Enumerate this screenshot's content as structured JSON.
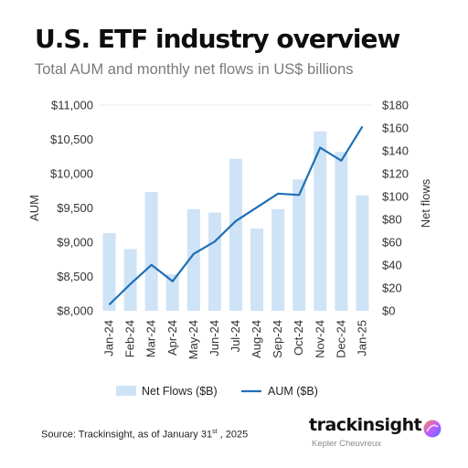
{
  "header": {
    "title": "U.S. ETF industry overview",
    "subtitle": "Total AUM and monthly net flows in US$ billions"
  },
  "footer": {
    "source_prefix": "Source: Trackinsight, as of January 31",
    "source_sup": "st",
    "source_suffix": " , 2025",
    "brand_name": "trackinsight",
    "brand_sub": "Kepler Cheuvreux"
  },
  "colors": {
    "bars": "#cfe3f7",
    "line": "#1f6fb5",
    "grid": "#e8e8e8",
    "logo_a": "#7b5cff",
    "logo_b": "#ff8a4c"
  },
  "chart_data": {
    "type": "bar+line",
    "categories": [
      "Jan-24",
      "Feb-24",
      "Mar-24",
      "Apr-24",
      "May-24",
      "Jun-24",
      "Jul-24",
      "Aug-24",
      "Sep-24",
      "Oct-24",
      "Nov-24",
      "Dec-24",
      "Jan-25"
    ],
    "series": [
      {
        "name": "Net Flows ($B)",
        "type": "bar",
        "axis": "right",
        "values": [
          68,
          54,
          104,
          32,
          89,
          86,
          133,
          72,
          89,
          115,
          157,
          139,
          101
        ]
      },
      {
        "name": "AUM ($B)",
        "type": "line",
        "axis": "left",
        "values": [
          8090,
          8390,
          8670,
          8430,
          8830,
          9010,
          9310,
          9510,
          9710,
          9690,
          10380,
          10190,
          10690
        ]
      }
    ],
    "y_left": {
      "label": "AUM",
      "ylim": [
        8000,
        11000
      ],
      "ticks": [
        8000,
        8500,
        9000,
        9500,
        10000,
        10500,
        11000
      ],
      "tick_labels": [
        "$8,000",
        "$8,500",
        "$9,000",
        "$9,500",
        "$10,000",
        "$10,500",
        "$11,000"
      ]
    },
    "y_right": {
      "label": "Net flows",
      "ylim": [
        0,
        180
      ],
      "ticks": [
        0,
        20,
        40,
        60,
        80,
        100,
        120,
        140,
        160,
        180
      ],
      "tick_labels": [
        "$0",
        "$20",
        "$40",
        "$60",
        "$80",
        "$100",
        "$120",
        "$140",
        "$160",
        "$180"
      ]
    },
    "legend": {
      "placement": "bottom",
      "items": [
        "Net Flows ($B)",
        "AUM ($B)"
      ]
    },
    "grid": false
  }
}
